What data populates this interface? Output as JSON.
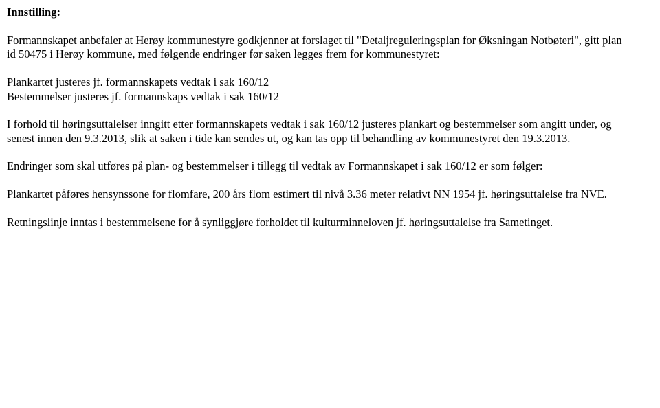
{
  "doc": {
    "heading": "Innstilling:",
    "p1": "Formannskapet anbefaler at Herøy kommunestyre godkjenner at forslaget til \"Detaljreguleringsplan for Øksningan Notbøteri\", gitt plan id 50475 i Herøy kommune, med følgende endringer før saken legges frem for kommunestyret:",
    "g1a": "Plankartet justeres jf. formannskapets vedtak i sak 160/12",
    "g1b": "Bestemmelser justeres jf. formannskaps vedtak i sak 160/12",
    "p2": "I forhold til høringsuttalelser inngitt etter formannskapets vedtak i sak 160/12 justeres plankart og bestemmelser som angitt under, og senest innen den 9.3.2013, slik at saken i tide kan sendes ut, og kan tas opp til behandling av kommunestyret den 19.3.2013.",
    "p3": "Endringer som skal utføres på plan- og bestemmelser i tillegg til vedtak av Formannskapet i sak 160/12 er som følger:",
    "p4": "Plankartet påføres hensynssone for flomfare, 200 års flom estimert til nivå 3.36 meter relativt NN 1954 jf. høringsuttalelse fra NVE.",
    "p5": "Retningslinje inntas i bestemmelsene for å synliggjøre forholdet til kulturminneloven jf. høringsuttalelse fra Sametinget."
  }
}
